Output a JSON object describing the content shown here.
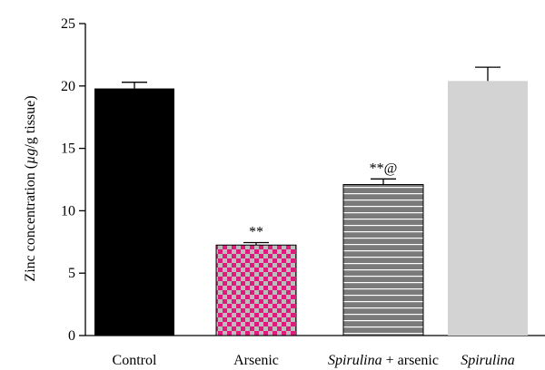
{
  "chart_data": {
    "type": "bar",
    "ylabel_prefix": "Zinc concentration (",
    "ylabel_unit": "µg",
    "ylabel_suffix": "/g tissue)",
    "ylim": [
      0,
      25
    ],
    "yticks": [
      "0",
      "5",
      "10",
      "15",
      "20",
      "25"
    ],
    "categories": [
      {
        "label_italic": "",
        "label_normal": "Control"
      },
      {
        "label_italic": "",
        "label_normal": "Arsenic"
      },
      {
        "label_italic": "Spirulina",
        "label_normal": " + arsenic"
      },
      {
        "label_italic": "Spirulina",
        "label_normal": ""
      }
    ],
    "values": [
      19.8,
      7.25,
      12.1,
      20.4
    ],
    "errors": [
      0.5,
      0.2,
      0.45,
      1.1
    ],
    "annotations": [
      "",
      "**",
      "**@",
      ""
    ],
    "colors": [
      "#000000",
      "#e0197d",
      "#7a7a7a",
      "#d3d3d3"
    ],
    "pattern_colors": [
      "",
      "#bdbdbd",
      "#ffffff",
      ""
    ]
  }
}
